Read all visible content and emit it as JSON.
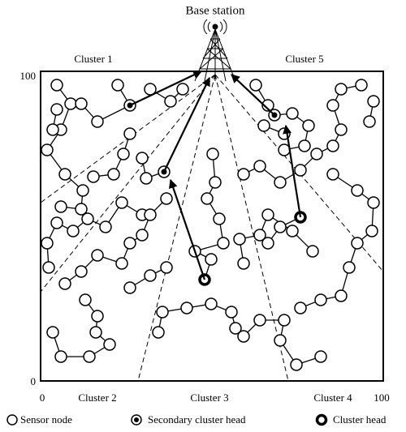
{
  "title": "Base station",
  "clusters": [
    "Cluster 1",
    "Cluster 5",
    "Cluster 2",
    "Cluster 3",
    "Cluster 4"
  ],
  "axis": {
    "y_top": "100",
    "y_bottom": "0",
    "x_left": "0",
    "x_right": "100"
  },
  "legend": [
    "Sensor node",
    "Secondary cluster head",
    "Cluster head"
  ]
}
